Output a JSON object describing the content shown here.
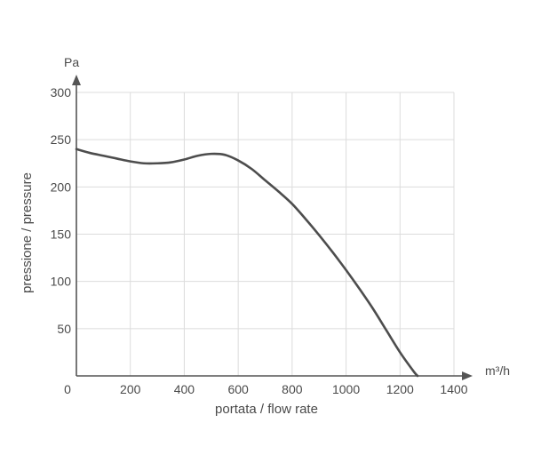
{
  "chart_data": {
    "type": "line",
    "title": "",
    "xlabel": "portata / flow rate",
    "ylabel": "pressione / pressure",
    "x_unit": "m³/h",
    "y_unit": "Pa",
    "xlim": [
      0,
      1400
    ],
    "ylim": [
      0,
      300
    ],
    "x_ticks": [
      0,
      200,
      400,
      600,
      800,
      1000,
      1200,
      1400
    ],
    "y_ticks": [
      50,
      100,
      150,
      200,
      250,
      300
    ],
    "grid": true,
    "series": [
      {
        "x": [
          0,
          50,
          100,
          150,
          200,
          250,
          300,
          350,
          400,
          450,
          500,
          550,
          600,
          650,
          700,
          750,
          800,
          850,
          900,
          950,
          1000,
          1050,
          1100,
          1150,
          1200,
          1250,
          1265
        ],
        "y": [
          240,
          236,
          233,
          230,
          227,
          225,
          225,
          226,
          229,
          233,
          235,
          234,
          228,
          219,
          207,
          195,
          182,
          166,
          149,
          131,
          112,
          92,
          71,
          48,
          25,
          5,
          0
        ]
      }
    ],
    "colors": {
      "line": "#4d4d4d",
      "grid": "#dcdcdc",
      "axis": "#555555",
      "text": "#4a4a4a"
    }
  }
}
